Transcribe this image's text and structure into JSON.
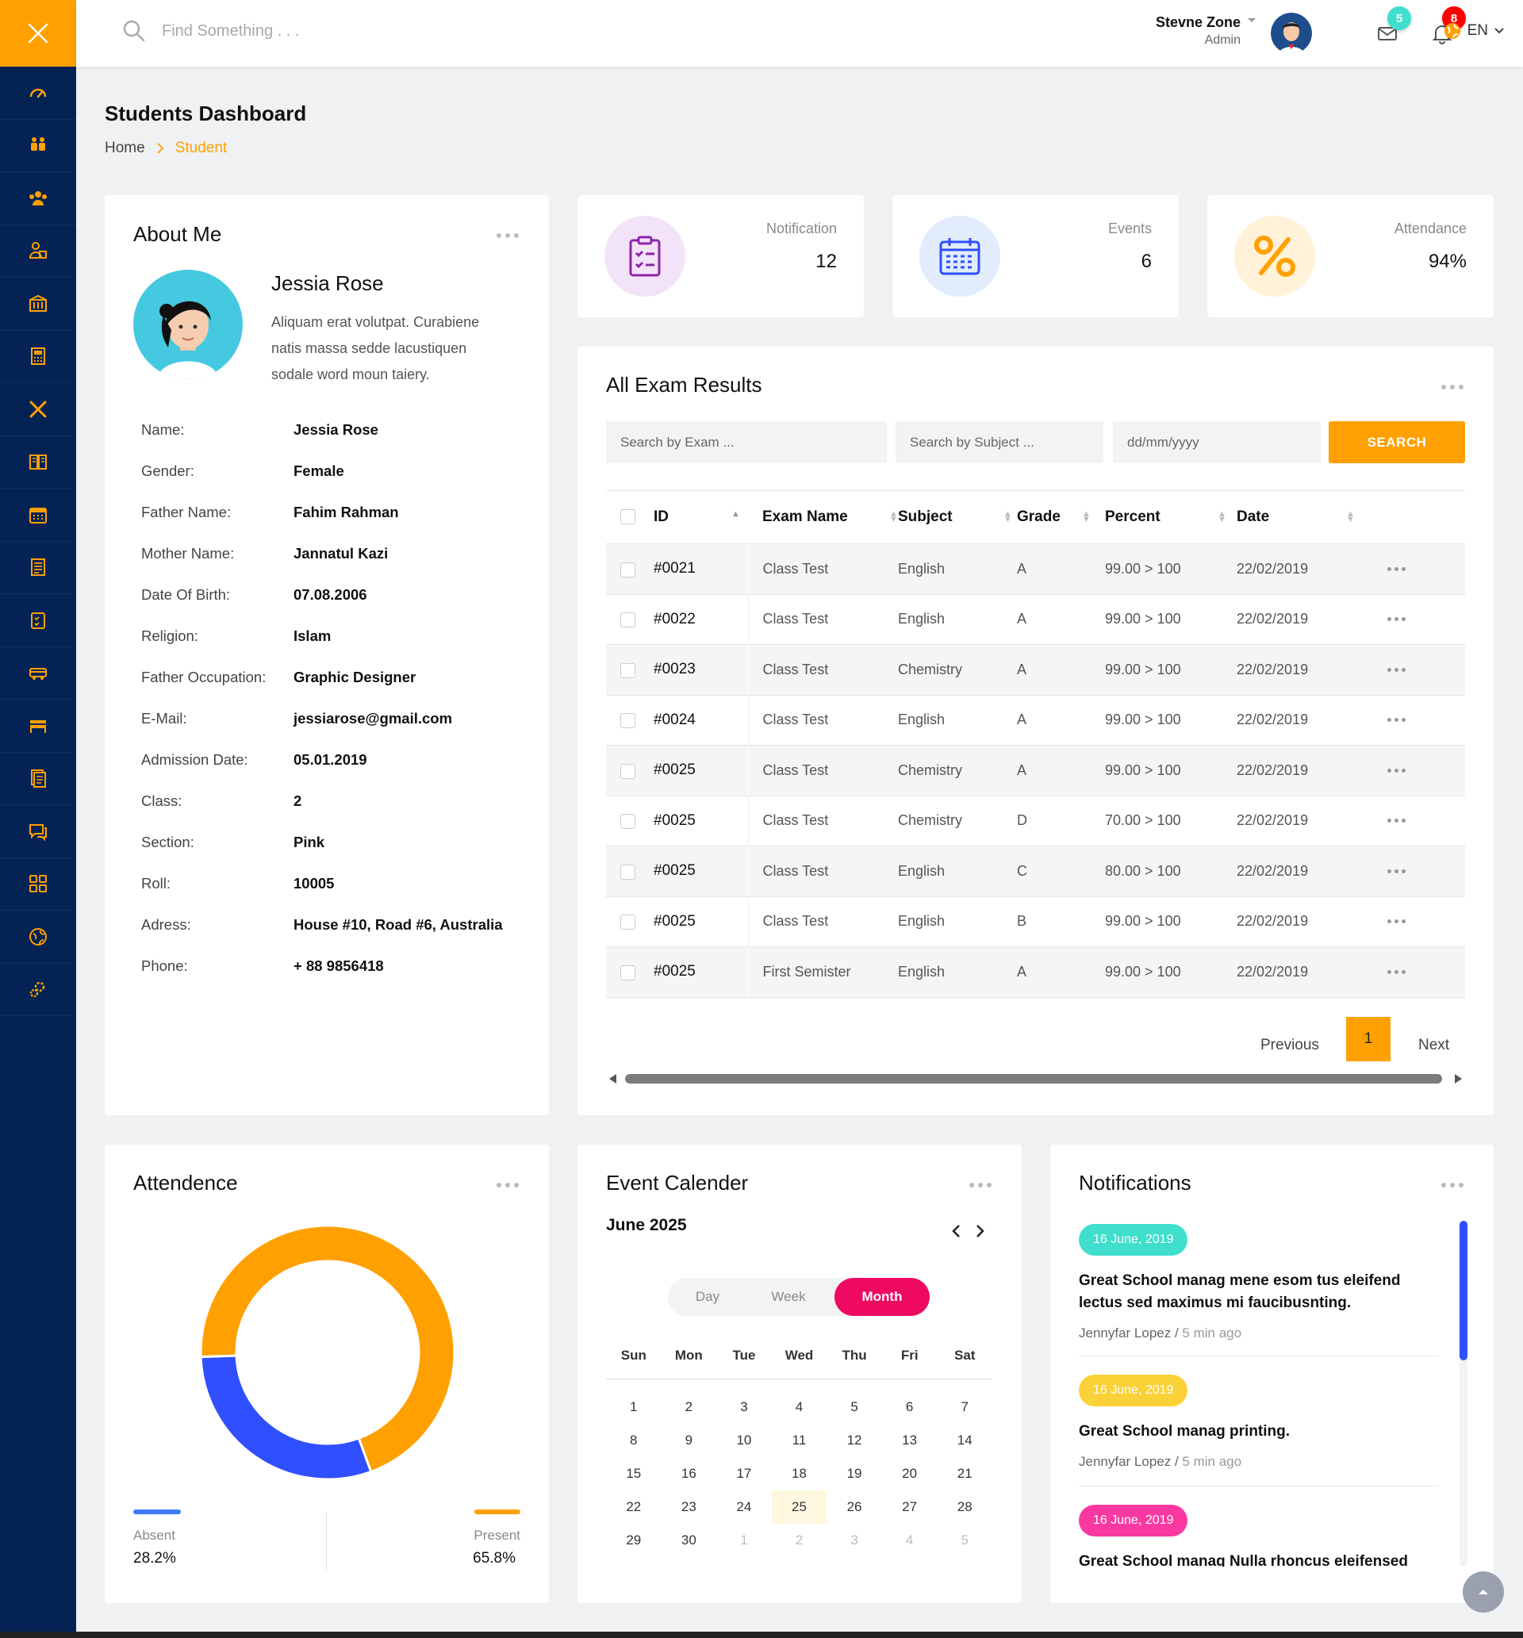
{
  "search": {
    "placeholder": "Find Something . . ."
  },
  "user": {
    "name": "Stevne Zone",
    "role": "Admin"
  },
  "badges": {
    "messages": "5",
    "notifications": "8"
  },
  "language": "EN",
  "sidebar": {
    "icons": [
      "dashboard-icon",
      "students-icon",
      "group-icon",
      "parents-icon",
      "library-icon",
      "account-icon",
      "class-icon",
      "subject-icon",
      "calendar-icon",
      "routine-icon",
      "exam-icon",
      "transport-icon",
      "hostel-icon",
      "notice-icon",
      "message-icon",
      "ui-elements-icon",
      "map-icon",
      "settings-icon"
    ]
  },
  "page": {
    "title": "Students Dashboard"
  },
  "breadcrumb": {
    "home": "Home",
    "current": "Student"
  },
  "about": {
    "title": "About Me",
    "name": "Jessia Rose",
    "bio": "Aliquam erat volutpat. Curabiene natis massa sedde lacustiquen sodale word moun taiery.",
    "fields": [
      {
        "label": "Name:",
        "value": "Jessia Rose"
      },
      {
        "label": "Gender:",
        "value": "Female"
      },
      {
        "label": "Father Name:",
        "value": "Fahim Rahman"
      },
      {
        "label": "Mother Name:",
        "value": "Jannatul Kazi"
      },
      {
        "label": "Date Of Birth:",
        "value": "07.08.2006"
      },
      {
        "label": "Religion:",
        "value": "Islam"
      },
      {
        "label": "Father Occupation:",
        "value": "Graphic Designer"
      },
      {
        "label": "E-Mail:",
        "value": "jessiarose@gmail.com"
      },
      {
        "label": "Admission Date:",
        "value": "05.01.2019"
      },
      {
        "label": "Class:",
        "value": "2"
      },
      {
        "label": "Section:",
        "value": "Pink"
      },
      {
        "label": "Roll:",
        "value": "10005"
      },
      {
        "label": "Adress:",
        "value": "House #10, Road #6, Australia"
      },
      {
        "label": "Phone:",
        "value": "+ 88 9856418"
      }
    ]
  },
  "stats": [
    {
      "label": "Notification",
      "value": "12",
      "icon": "clipboard-check-icon",
      "color": "#8e24aa",
      "bg": "#f3e3f8"
    },
    {
      "label": "Events",
      "value": "6",
      "icon": "calendar-icon",
      "color": "#304ffe",
      "bg": "#e1ecfc"
    },
    {
      "label": "Attendance",
      "value": "94%",
      "icon": "percent-icon",
      "color": "#ffa001",
      "bg": "#fff2d8"
    }
  ],
  "exam": {
    "title": "All Exam Results",
    "filters": {
      "exam_placeholder": "Search by Exam ...",
      "subject_placeholder": "Search by Subject ...",
      "date_placeholder": "dd/mm/yyyy",
      "button": "SEARCH"
    },
    "columns": [
      "ID",
      "Exam Name",
      "Subject",
      "Grade",
      "Percent",
      "Date"
    ],
    "rows": [
      {
        "id": "#0021",
        "exam": "Class Test",
        "subject": "English",
        "grade": "A",
        "percent": "99.00 > 100",
        "date": "22/02/2019"
      },
      {
        "id": "#0022",
        "exam": "Class Test",
        "subject": "English",
        "grade": "A",
        "percent": "99.00 > 100",
        "date": "22/02/2019"
      },
      {
        "id": "#0023",
        "exam": "Class Test",
        "subject": "Chemistry",
        "grade": "A",
        "percent": "99.00 > 100",
        "date": "22/02/2019"
      },
      {
        "id": "#0024",
        "exam": "Class Test",
        "subject": "English",
        "grade": "A",
        "percent": "99.00 > 100",
        "date": "22/02/2019"
      },
      {
        "id": "#0025",
        "exam": "Class Test",
        "subject": "Chemistry",
        "grade": "A",
        "percent": "99.00 > 100",
        "date": "22/02/2019"
      },
      {
        "id": "#0025",
        "exam": "Class Test",
        "subject": "Chemistry",
        "grade": "D",
        "percent": "70.00 > 100",
        "date": "22/02/2019"
      },
      {
        "id": "#0025",
        "exam": "Class Test",
        "subject": "English",
        "grade": "C",
        "percent": "80.00 > 100",
        "date": "22/02/2019"
      },
      {
        "id": "#0025",
        "exam": "Class Test",
        "subject": "English",
        "grade": "B",
        "percent": "99.00 > 100",
        "date": "22/02/2019"
      },
      {
        "id": "#0025",
        "exam": "First Semister",
        "subject": "English",
        "grade": "A",
        "percent": "99.00 > 100",
        "date": "22/02/2019"
      }
    ],
    "pager": {
      "previous": "Previous",
      "page": "1",
      "next": "Next"
    }
  },
  "attendance": {
    "title": "Attendence",
    "absent_label": "Absent",
    "absent_value": "28.2%",
    "present_label": "Present",
    "present_value": "65.8%",
    "absent_color": "#3f7afc",
    "present_color": "#ffa001"
  },
  "chart_data": {
    "type": "pie",
    "labels": [
      "Absent",
      "Present"
    ],
    "values": [
      28.2,
      65.8
    ],
    "colors": [
      "#304ffe",
      "#ffa001"
    ]
  },
  "calendar": {
    "title": "Event Calender",
    "month": "June 2025",
    "views": [
      "Day",
      "Week",
      "Month"
    ],
    "active_view": "Month",
    "weekdays": [
      "Sun",
      "Mon",
      "Tue",
      "Wed",
      "Thu",
      "Fri",
      "Sat"
    ],
    "days": [
      "1",
      "2",
      "3",
      "4",
      "5",
      "6",
      "7",
      "8",
      "9",
      "10",
      "11",
      "12",
      "13",
      "14",
      "15",
      "16",
      "17",
      "18",
      "19",
      "20",
      "21",
      "22",
      "23",
      "24",
      "25",
      "26",
      "27",
      "28",
      "29",
      "30"
    ],
    "next_days": [
      "1",
      "2",
      "3",
      "4",
      "5"
    ],
    "today": "25"
  },
  "notifications": {
    "title": "Notifications",
    "items": [
      {
        "date": "16 June, 2019",
        "color": "#40dfcd",
        "text": "Great School manag mene esom tus eleifend lectus sed maximus mi faucibusnting.",
        "author": "Jennyfar Lopez",
        "time": "5 min ago"
      },
      {
        "date": "16 June, 2019",
        "color": "#fbd138",
        "text": "Great School manag printing.",
        "author": "Jennyfar Lopez",
        "time": "5 min ago"
      },
      {
        "date": "16 June, 2019",
        "color": "#f939a1",
        "text": "Great School manag Nulla rhoncus eleifensed mim",
        "author": "",
        "time": ""
      }
    ]
  }
}
